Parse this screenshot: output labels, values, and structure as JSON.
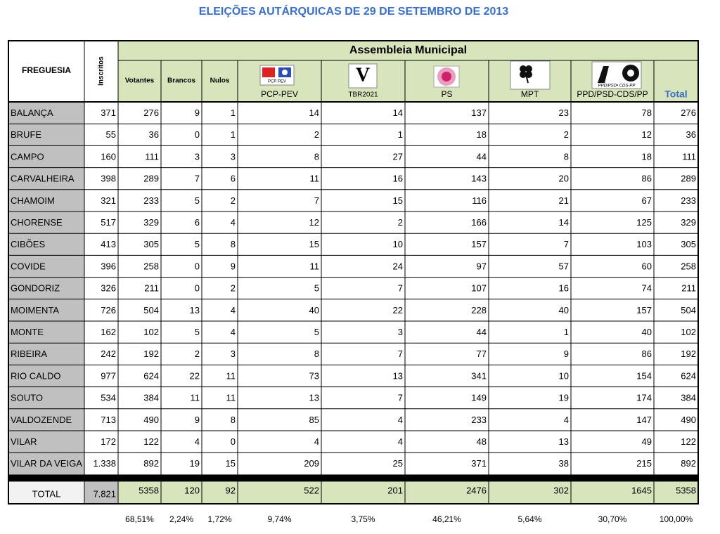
{
  "title": "ELEIÇÕES AUTÁRQUICAS DE 29 DE SETEMBRO DE 2013",
  "table": {
    "header": {
      "freguesia": "FREGUESIA",
      "inscritos": "Inscritos",
      "group": "Assembleia Municipal",
      "columns": [
        "Votantes",
        "Brancos",
        "Nulos",
        "PCP-PEV",
        "TBR2021",
        "PS",
        "MPT",
        "PPD/PSD-CDS/PP",
        "Total"
      ],
      "logos": {
        "pcp": "PCP PEV",
        "tbr": "V",
        "ppd": "PPD/PSD• CDS-PP"
      }
    },
    "rows": [
      [
        "BALANÇA",
        371,
        276,
        9,
        1,
        14,
        14,
        137,
        23,
        78,
        276
      ],
      [
        "BRUFE",
        55,
        36,
        0,
        1,
        2,
        1,
        18,
        2,
        12,
        36
      ],
      [
        "CAMPO",
        160,
        111,
        3,
        3,
        8,
        27,
        44,
        8,
        18,
        111
      ],
      [
        "CARVALHEIRA",
        398,
        289,
        7,
        6,
        11,
        16,
        143,
        20,
        86,
        289
      ],
      [
        "CHAMOIM",
        321,
        233,
        5,
        2,
        7,
        15,
        116,
        21,
        67,
        233
      ],
      [
        "CHORENSE",
        517,
        329,
        6,
        4,
        12,
        2,
        166,
        14,
        125,
        329
      ],
      [
        "CIBÕES",
        413,
        305,
        5,
        8,
        15,
        10,
        157,
        7,
        103,
        305
      ],
      [
        "COVIDE",
        396,
        258,
        0,
        9,
        11,
        24,
        97,
        57,
        60,
        258
      ],
      [
        "GONDORIZ",
        326,
        211,
        0,
        2,
        5,
        7,
        107,
        16,
        74,
        211
      ],
      [
        "MOIMENTA",
        726,
        504,
        13,
        4,
        40,
        22,
        228,
        40,
        157,
        504
      ],
      [
        "MONTE",
        162,
        102,
        5,
        4,
        5,
        3,
        44,
        1,
        40,
        102
      ],
      [
        "RIBEIRA",
        242,
        192,
        2,
        3,
        8,
        7,
        77,
        9,
        86,
        192
      ],
      [
        "RIO CALDO",
        977,
        624,
        22,
        11,
        73,
        13,
        341,
        10,
        154,
        624
      ],
      [
        "SOUTO",
        534,
        384,
        11,
        11,
        13,
        7,
        149,
        19,
        174,
        384
      ],
      [
        "VALDOZENDE",
        713,
        490,
        9,
        8,
        85,
        4,
        233,
        4,
        147,
        490
      ],
      [
        "VILAR",
        172,
        122,
        4,
        0,
        4,
        4,
        48,
        13,
        49,
        122
      ],
      [
        "VILAR DA VEIGA",
        "1.338",
        892,
        19,
        15,
        209,
        25,
        371,
        38,
        215,
        892
      ]
    ],
    "total": [
      "TOTAL",
      "7.821",
      5358,
      120,
      92,
      522,
      201,
      2476,
      302,
      1645,
      5358
    ],
    "percentages": [
      "68,51%",
      "2,24%",
      "1,72%",
      "9,74%",
      "3,75%",
      "46,21%",
      "5,64%",
      "30,70%",
      "100,00%"
    ]
  }
}
